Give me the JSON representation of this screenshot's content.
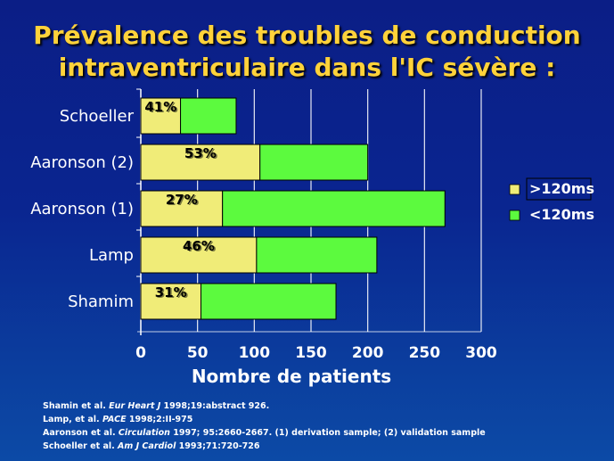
{
  "title_line1": "Prévalence des troubles de conduction",
  "title_line2": "intraventriculaire dans l'IC sévère :",
  "colors": {
    "background": "#0b2a92",
    "title": "#ffd23a",
    "series_gt120": "#f0ec78",
    "series_lt120": "#5cfa3e",
    "text": "#ffffff"
  },
  "chart_data": {
    "type": "bar",
    "orientation": "horizontal",
    "stacked": true,
    "categories": [
      "Schoeller",
      "Aaronson (2)",
      "Aaronson (1)",
      "Lamp",
      "Shamim"
    ],
    "series": [
      {
        "name": ">120ms",
        "values": [
          35,
          105,
          72,
          102,
          53
        ]
      },
      {
        "name": "<120ms",
        "values": [
          49,
          95,
          196,
          106,
          119
        ]
      }
    ],
    "bar_labels": [
      "41%",
      "53%",
      "27%",
      "46%",
      "31%"
    ],
    "xticks": [
      "0",
      "50",
      "100",
      "150",
      "200",
      "250",
      "300"
    ],
    "xlim": [
      0,
      300
    ],
    "xlabel": "Nombre de patients",
    "ylabel": "",
    "grid": true,
    "legend_position": "right"
  },
  "references": [
    {
      "before": "Shamin et al. ",
      "journal": "Eur Heart J",
      "after": " 1998;19:abstract 926."
    },
    {
      "before": "Lamp, et al. ",
      "journal": "PACE",
      "after": " 1998;2:II-975"
    },
    {
      "before": "Aaronson  et al. ",
      "journal": "Circulation",
      "after": " 1997; 95:2660-2667. (1) derivation sample; (2) validation sample"
    },
    {
      "before": "Schoeller et al. ",
      "journal": "Am J Cardiol",
      "after": " 1993;71:720-726"
    }
  ]
}
